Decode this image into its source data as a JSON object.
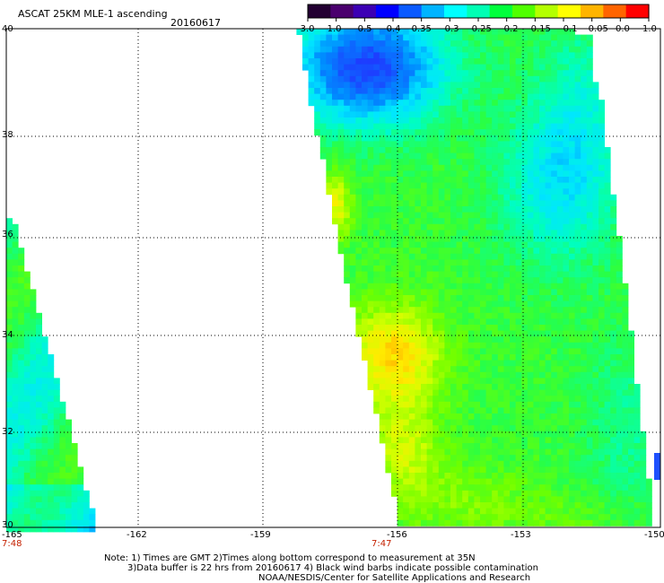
{
  "header": {
    "title": "ASCAT 25KM MLE-1 ascending",
    "date": "20160617"
  },
  "colorbar": {
    "tick_labels": [
      "-3.0",
      "-1.0",
      "-0.5",
      "-0.4",
      "-0.35",
      "-0.3",
      "-0.25",
      "-0.2",
      "-0.15",
      "-0.1",
      "-0.05",
      "0.0",
      "1.0"
    ],
    "colors": [
      "#230032",
      "#4a006e",
      "#3c00b4",
      "#0000ff",
      "#0a5aff",
      "#00b4ff",
      "#00ffff",
      "#00ffb4",
      "#00ff3c",
      "#50ff00",
      "#b4ff00",
      "#ffff00",
      "#ffb400",
      "#ff6400",
      "#ff0000"
    ]
  },
  "map": {
    "lat_labels": [
      "40",
      "38",
      "36",
      "34",
      "32",
      "30"
    ],
    "lon_labels": [
      "-165",
      "-162",
      "-159",
      "-156",
      "-153",
      "-150"
    ],
    "swath_times": [
      "7:48",
      "7:47"
    ]
  },
  "footer": {
    "note_line1": "Note: 1) Times are GMT 2)Times along bottom correspond to measurement at 35N",
    "note_line2": "3)Data buffer is 22 hrs from 20160617 4) Black wind barbs indicate possible contamination",
    "credit": "NOAA/NESDIS/Center for Satellite Applications and Research"
  }
}
